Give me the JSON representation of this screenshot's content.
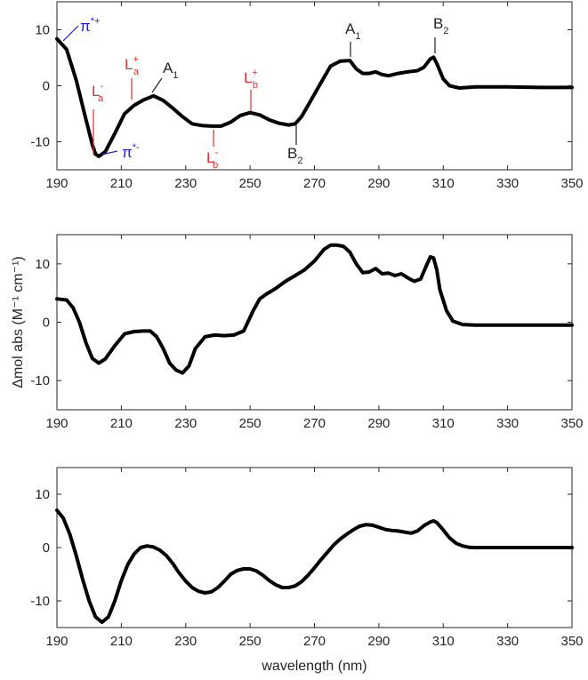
{
  "chart_data": [
    {
      "type": "line",
      "xlim": [
        190,
        350
      ],
      "ylim": [
        -15,
        15
      ],
      "x_ticks": [
        190,
        210,
        230,
        250,
        270,
        290,
        310,
        330,
        350
      ],
      "y_ticks": [
        -10,
        0,
        10
      ],
      "xlabel": "",
      "ylabel": "",
      "series": [
        {
          "name": "",
          "x": [
            190,
            193,
            196,
            199,
            201,
            202,
            203,
            205,
            208,
            211,
            214,
            217,
            220,
            223,
            226,
            229,
            232,
            235,
            238,
            241,
            244,
            247,
            250,
            253,
            256,
            259,
            262,
            264,
            266,
            269,
            272,
            275,
            278,
            281,
            283,
            285,
            287,
            289,
            291,
            293,
            296,
            299,
            302,
            304,
            306,
            307,
            308,
            310,
            312,
            315,
            320,
            330,
            340,
            350
          ],
          "y": [
            8.4,
            6.5,
            1,
            -6,
            -10.5,
            -12.2,
            -12.6,
            -11.8,
            -8.5,
            -5,
            -3.5,
            -2.5,
            -1.8,
            -2.6,
            -4,
            -5.5,
            -6.8,
            -7.1,
            -7.2,
            -7.2,
            -6.5,
            -5.3,
            -4.8,
            -5.2,
            -6.1,
            -6.7,
            -7,
            -6.8,
            -5.5,
            -2.5,
            0.5,
            3.5,
            4.4,
            4.5,
            3,
            2.2,
            2.2,
            2.5,
            2,
            1.8,
            2.2,
            2.5,
            2.7,
            3.3,
            4.8,
            5.1,
            4,
            1.2,
            0,
            -0.4,
            -0.2,
            -0.2,
            -0.3,
            -0.3
          ]
        }
      ],
      "annotations": [
        {
          "label": "π",
          "sup": "*+",
          "sub": "",
          "color": "#2020cc",
          "x": 192,
          "y": 8.4
        },
        {
          "label": "L",
          "sup": "-",
          "sub": "a",
          "color": "#e03030",
          "x": 202,
          "y": -12.4
        },
        {
          "label": "L",
          "sup": "+",
          "sub": "a",
          "color": "#e03030",
          "x": 213,
          "y": -2.9
        },
        {
          "label": "A",
          "sup": "",
          "sub": "1",
          "color": "#262626",
          "x": 219,
          "y": -1.6
        },
        {
          "label": "π",
          "sup": "*-",
          "sub": "",
          "color": "#2020cc",
          "x": 204,
          "y": -12.3
        },
        {
          "label": "L",
          "sup": "-",
          "sub": "b",
          "color": "#e03030",
          "x": 238,
          "y": -7.3
        },
        {
          "label": "L",
          "sup": "+",
          "sub": "b",
          "color": "#e03030",
          "x": 250,
          "y": -4.8
        },
        {
          "label": "B",
          "sup": "",
          "sub": "2",
          "color": "#262626",
          "x": 264,
          "y": -6.8
        },
        {
          "label": "A",
          "sup": "",
          "sub": "1",
          "color": "#262626",
          "x": 281,
          "y": 4.5
        },
        {
          "label": "B",
          "sup": "",
          "sub": "2",
          "color": "#262626",
          "x": 307,
          "y": 5.1
        }
      ]
    },
    {
      "type": "line",
      "xlim": [
        190,
        350
      ],
      "ylim": [
        -15,
        15
      ],
      "x_ticks": [
        190,
        210,
        230,
        250,
        270,
        290,
        310,
        330,
        350
      ],
      "y_ticks": [
        -10,
        0,
        10
      ],
      "xlabel": "",
      "ylabel": "Δmol abs (M⁻¹ cm⁻¹)",
      "series": [
        {
          "name": "",
          "x": [
            190,
            193,
            195,
            197,
            199,
            201,
            203,
            205,
            208,
            211,
            214,
            217,
            219,
            221,
            223,
            225,
            227,
            229,
            231,
            233,
            236,
            239,
            242,
            245,
            248,
            251,
            253,
            255,
            258,
            261,
            264,
            267,
            270,
            273,
            275,
            277,
            279,
            281,
            283,
            285,
            287,
            289,
            291,
            293,
            295,
            297,
            299,
            301,
            303,
            305,
            306,
            307,
            308,
            309,
            311,
            313,
            316,
            320,
            330,
            340,
            350
          ],
          "y": [
            4,
            3.8,
            2.5,
            0,
            -3.5,
            -6.2,
            -7,
            -6.3,
            -4,
            -2,
            -1.6,
            -1.5,
            -1.5,
            -2.5,
            -4.5,
            -7,
            -8.2,
            -8.7,
            -7.5,
            -4.5,
            -2.5,
            -2.2,
            -2.3,
            -2.2,
            -1.5,
            2,
            4,
            4.8,
            5.8,
            7,
            8,
            9,
            10.5,
            12.5,
            13.2,
            13.2,
            13,
            12,
            10,
            8.5,
            8.6,
            9.2,
            8.3,
            8.4,
            8,
            8.3,
            7.6,
            7,
            7.4,
            10,
            11.2,
            11,
            9,
            5.5,
            2,
            0.2,
            -0.4,
            -0.5,
            -0.5,
            -0.5,
            -0.5
          ]
        }
      ]
    },
    {
      "type": "line",
      "xlim": [
        190,
        350
      ],
      "ylim": [
        -15,
        15
      ],
      "x_ticks": [
        190,
        210,
        230,
        250,
        270,
        290,
        310,
        330,
        350
      ],
      "y_ticks": [
        -10,
        0,
        10
      ],
      "xlabel": "wavelength (nm)",
      "ylabel": "",
      "series": [
        {
          "name": "",
          "x": [
            190,
            192,
            194,
            196,
            198,
            200,
            202,
            204,
            206,
            208,
            210,
            212,
            214,
            216,
            218,
            220,
            222,
            224,
            226,
            228,
            230,
            232,
            234,
            236,
            238,
            240,
            242,
            244,
            246,
            248,
            250,
            252,
            254,
            256,
            258,
            260,
            262,
            264,
            266,
            268,
            270,
            272,
            274,
            276,
            278,
            280,
            282,
            284,
            286,
            288,
            290,
            292,
            294,
            296,
            298,
            300,
            302,
            304,
            306,
            307,
            308,
            310,
            312,
            314,
            316,
            318,
            320,
            330,
            340,
            350
          ],
          "y": [
            7,
            5.5,
            2.5,
            -1.5,
            -6,
            -10,
            -13,
            -14,
            -13,
            -10,
            -6.2,
            -3.2,
            -1.2,
            0,
            0.3,
            0.1,
            -0.5,
            -1.5,
            -3,
            -4.8,
            -6.3,
            -7.5,
            -8.2,
            -8.5,
            -8.3,
            -7.5,
            -6.3,
            -5,
            -4.3,
            -4,
            -4,
            -4.4,
            -5.2,
            -6.2,
            -7,
            -7.5,
            -7.5,
            -7.2,
            -6.4,
            -5.2,
            -3.8,
            -2.3,
            -0.9,
            0.5,
            1.6,
            2.5,
            3.3,
            4,
            4.3,
            4.2,
            3.8,
            3.4,
            3.2,
            3.1,
            2.9,
            2.7,
            3.1,
            4.1,
            4.8,
            5,
            4.7,
            3.3,
            1.8,
            0.8,
            0.3,
            0.05,
            0,
            0,
            0,
            0
          ]
        }
      ]
    }
  ]
}
